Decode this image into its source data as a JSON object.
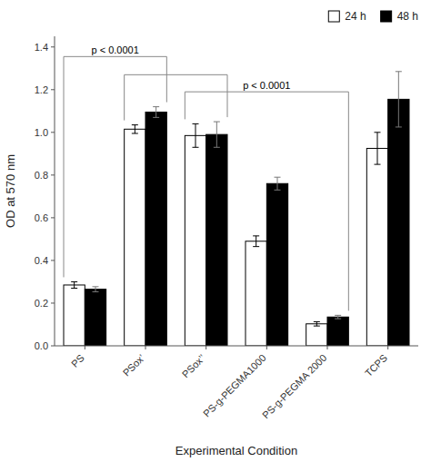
{
  "chart_data": {
    "type": "bar",
    "xlabel": "Experimental Condition",
    "ylabel": "OD at 570 nm",
    "categories": [
      "PS",
      "PSox’",
      "PSox’’",
      "PS-g-PEGMA1000",
      "PS-g-PEGMA 2000",
      "TCPS"
    ],
    "series": [
      {
        "name": "24 h",
        "color": "#ffffff",
        "values": [
          0.285,
          1.015,
          0.985,
          0.49,
          0.103,
          0.925
        ],
        "errors": [
          0.015,
          0.02,
          0.055,
          0.025,
          0.01,
          0.075
        ]
      },
      {
        "name": "48 h",
        "color": "#000000",
        "values": [
          0.265,
          1.095,
          0.99,
          0.76,
          0.135,
          1.155
        ],
        "errors": [
          0.012,
          0.025,
          0.06,
          0.03,
          0.008,
          0.13
        ]
      }
    ],
    "ylim": [
      0,
      1.45
    ],
    "yticks": [
      {
        "value": 0,
        "label": "0.0"
      },
      0.2,
      0.4,
      0.6,
      0.8,
      {
        "value": 1,
        "label": "1.0"
      },
      1.2,
      1.4
    ],
    "grid": false,
    "legend": "upper right",
    "annotations": [
      {
        "text": "p < 0.0001",
        "from": 0,
        "to": 1,
        "y": 1.355
      },
      {
        "from": 1,
        "to": 2,
        "y": 1.27
      },
      {
        "text": "p < 0.0001",
        "from": 2,
        "to": 4,
        "y": 1.19
      }
    ]
  }
}
